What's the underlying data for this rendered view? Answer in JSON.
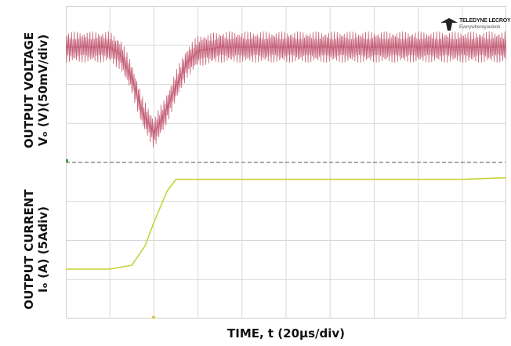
{
  "logo": {
    "brand": "TELEDYNE LECROY",
    "tagline": "Everywhereyoulook"
  },
  "chart_data": [
    {
      "type": "line",
      "ylabel_line1": "OUTPUT VOLTAGE",
      "ylabel_line2": "Vₒ (V)(50mV/div)",
      "xlabel": "TIME, t (20µs/div)",
      "x_unit_per_div": 20,
      "y_unit_per_div": 50,
      "x_divisions": 10,
      "y_divisions": 4,
      "series": [
        {
          "color": "#c0506a",
          "x": [
            0,
            10,
            20,
            25,
            30,
            35,
            40,
            45,
            50,
            55,
            60,
            70,
            80,
            90,
            100,
            120,
            140,
            160,
            180,
            200
          ],
          "values": [
            0,
            0,
            0,
            -10,
            -40,
            -85,
            -110,
            -85,
            -50,
            -20,
            -5,
            0,
            0,
            0,
            0,
            0,
            0,
            0,
            0,
            0
          ],
          "ripple_pp": 40
        }
      ]
    },
    {
      "type": "line",
      "ylabel_line1": "OUTPUT CURRENT",
      "ylabel_line2": "Iₒ (A) (5Adiv)",
      "x_unit_per_div": 20,
      "y_unit_per_div": 5,
      "x_divisions": 10,
      "y_divisions": 4,
      "series": [
        {
          "color": "#c8d23a",
          "x": [
            0,
            10,
            20,
            30,
            36,
            40,
            46,
            50,
            60,
            80,
            100,
            120,
            140,
            160,
            180,
            200
          ],
          "values": [
            0,
            0,
            0,
            0.5,
            3,
            6,
            10,
            11.5,
            11.5,
            11.5,
            11.5,
            11.5,
            11.5,
            11.5,
            11.5,
            11.7
          ]
        }
      ]
    }
  ]
}
